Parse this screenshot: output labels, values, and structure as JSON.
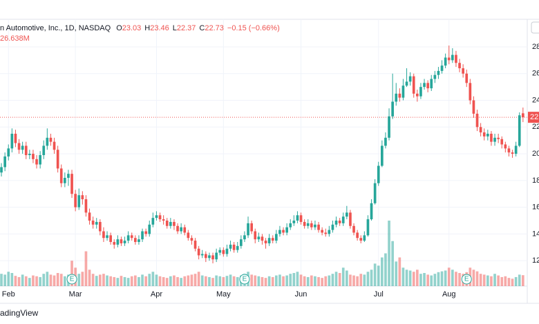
{
  "chart_data": {
    "type": "candlestick",
    "title": "n Automotive, Inc., 1D, NASDAQ",
    "ohlc_labels": [
      "O",
      "H",
      "L",
      "C"
    ],
    "change_label": "−0.15 (−0.66%)",
    "volume_label": "26.638M",
    "watermark": "adingView",
    "up_color": "#26a69a",
    "down_color": "#ef5350",
    "grid": true,
    "xlim": [
      -0.4,
      149.6
    ],
    "xticks": [
      {
        "value": 2,
        "label": "Feb"
      },
      {
        "value": 21,
        "label": "Mar"
      },
      {
        "value": 44,
        "label": "Apr"
      },
      {
        "value": 63,
        "label": "May"
      },
      {
        "value": 85,
        "label": "Jun"
      },
      {
        "value": 107,
        "label": "Jul"
      },
      {
        "value": 127,
        "label": "Aug"
      }
    ],
    "ylim": [
      10.1,
      28.67
    ],
    "yticks": [
      12,
      14,
      16,
      18,
      20,
      22,
      24,
      26,
      28
    ],
    "earnings": [
      {
        "index": 20,
        "label": "E"
      },
      {
        "index": 69,
        "label": "E"
      },
      {
        "index": 132,
        "label": "E"
      }
    ],
    "open": [
      18.6,
      19.0,
      19.8,
      20.4,
      21.5,
      20.8,
      20.3,
      20.6,
      19.9,
      20.0,
      19.6,
      19.2,
      19.9,
      20.6,
      21.2,
      20.9,
      20.3,
      18.9,
      17.8,
      18.2,
      18.5,
      17.0,
      16.0,
      16.9,
      16.6,
      15.6,
      15.0,
      14.7,
      14.9,
      14.2,
      13.7,
      13.9,
      13.4,
      13.2,
      13.6,
      13.3,
      13.5,
      13.9,
      13.7,
      13.4,
      13.6,
      14.2,
      14.0,
      14.7,
      15.2,
      15.4,
      15.1,
      15.0,
      14.6,
      14.9,
      14.6,
      14.2,
      14.5,
      14.1,
      13.7,
      13.5,
      12.9,
      12.4,
      12.5,
      12.2,
      12.4,
      12.1,
      12.6,
      12.8,
      12.5,
      12.9,
      13.2,
      12.8,
      13.1,
      13.6,
      13.9,
      14.8,
      14.2,
      13.6,
      13.8,
      13.5,
      13.3,
      13.7,
      13.5,
      14.0,
      14.3,
      14.1,
      14.5,
      14.8,
      15.0,
      15.4,
      14.9,
      14.6,
      14.8,
      14.5,
      14.7,
      14.3,
      14.1,
      14.0,
      14.3,
      14.7,
      15.0,
      14.8,
      15.3,
      15.6,
      14.6,
      14.1,
      13.7,
      13.5,
      13.9,
      15.1,
      16.3,
      17.8,
      19.1,
      20.6,
      21.2,
      22.8,
      23.9,
      24.5,
      24.2,
      25.1,
      25.4,
      25.8,
      24.5,
      24.3,
      25.0,
      25.3,
      24.9,
      25.6,
      25.9,
      26.2,
      26.6,
      27.2,
      27.0,
      27.4,
      26.8,
      26.4,
      26.0,
      25.3,
      24.0,
      23.0,
      22.0,
      21.6,
      21.3,
      21.5,
      20.9,
      21.2,
      21.1,
      20.7,
      20.4,
      20.1,
      20.0,
      20.6,
      23.03
    ],
    "high": [
      19.3,
      20.1,
      20.7,
      21.9,
      21.8,
      21.1,
      20.9,
      20.9,
      20.3,
      20.3,
      19.9,
      20.2,
      21.0,
      21.9,
      21.5,
      21.2,
      20.6,
      19.2,
      18.6,
      18.8,
      18.8,
      17.3,
      17.4,
      17.2,
      16.9,
      15.9,
      15.3,
      15.2,
      15.1,
      14.5,
      14.2,
      14.1,
      13.6,
      13.9,
      13.8,
      13.8,
      14.2,
      14.1,
      13.9,
      13.9,
      14.4,
      14.4,
      15.0,
      15.6,
      15.7,
      15.6,
      15.4,
      15.2,
      15.2,
      15.1,
      14.8,
      14.8,
      14.7,
      14.3,
      13.9,
      13.7,
      13.1,
      12.8,
      12.7,
      12.6,
      12.6,
      12.9,
      13.0,
      13.0,
      13.2,
      13.5,
      13.4,
      13.4,
      13.9,
      14.2,
      15.3,
      15.0,
      14.4,
      14.1,
      14.0,
      13.7,
      14.0,
      13.9,
      14.3,
      14.6,
      14.5,
      14.8,
      15.1,
      15.4,
      15.7,
      15.6,
      15.1,
      15.1,
      15.0,
      15.0,
      14.9,
      14.5,
      14.4,
      14.6,
      15.0,
      15.3,
      15.2,
      15.6,
      16.1,
      15.8,
      14.8,
      14.3,
      13.9,
      14.2,
      15.4,
      16.6,
      18.1,
      19.4,
      21.0,
      21.6,
      23.4,
      26.0,
      25.3,
      24.9,
      25.6,
      26.4,
      26.1,
      26.0,
      24.8,
      25.3,
      25.6,
      25.5,
      25.9,
      26.2,
      26.5,
      27.0,
      27.5,
      28.1,
      27.9,
      27.7,
      27.1,
      26.7,
      26.3,
      25.6,
      24.3,
      23.3,
      22.3,
      21.9,
      21.8,
      21.7,
      21.5,
      21.5,
      21.3,
      20.9,
      20.6,
      20.3,
      20.9,
      23.1,
      23.46
    ],
    "low": [
      18.3,
      18.7,
      19.5,
      20.1,
      20.5,
      20.0,
      20.0,
      19.6,
      19.6,
      19.3,
      18.9,
      18.9,
      19.6,
      20.3,
      20.6,
      20.0,
      18.6,
      17.5,
      17.5,
      17.6,
      16.7,
      15.7,
      15.8,
      16.2,
      15.3,
      14.7,
      14.4,
      14.4,
      13.9,
      13.4,
      13.5,
      13.2,
      12.9,
      13.0,
      13.1,
      13.1,
      13.3,
      13.5,
      13.2,
      13.2,
      13.4,
      13.8,
      13.8,
      14.5,
      15.0,
      14.9,
      14.7,
      14.4,
      14.4,
      14.3,
      14.0,
      14.0,
      13.9,
      13.5,
      13.2,
      12.7,
      12.1,
      12.2,
      11.9,
      12.0,
      11.8,
      11.9,
      12.4,
      12.3,
      12.3,
      12.7,
      12.6,
      12.6,
      12.9,
      13.4,
      13.7,
      14.0,
      13.3,
      13.4,
      13.2,
      12.9,
      13.1,
      13.3,
      13.3,
      13.8,
      13.9,
      13.9,
      14.3,
      14.6,
      14.8,
      14.7,
      14.4,
      14.4,
      14.3,
      14.3,
      14.1,
      13.9,
      13.8,
      13.8,
      14.1,
      14.5,
      14.6,
      14.6,
      15.1,
      14.4,
      13.9,
      13.5,
      13.3,
      13.4,
      13.8,
      15.0,
      16.2,
      17.6,
      19.0,
      20.4,
      21.0,
      22.6,
      23.6,
      23.9,
      24.0,
      25.0,
      25.1,
      24.2,
      23.9,
      24.1,
      24.8,
      24.6,
      24.7,
      25.3,
      25.6,
      26.0,
      26.4,
      26.7,
      26.8,
      26.5,
      26.1,
      25.7,
      25.0,
      23.7,
      22.7,
      21.7,
      21.3,
      21.0,
      21.0,
      20.6,
      20.6,
      20.8,
      20.4,
      20.1,
      19.8,
      19.7,
      19.8,
      20.5,
      22.37
    ],
    "close": [
      19.0,
      19.8,
      20.4,
      21.5,
      20.8,
      20.3,
      20.6,
      19.9,
      20.0,
      19.6,
      19.2,
      19.9,
      20.6,
      21.2,
      20.9,
      20.3,
      18.9,
      17.8,
      18.2,
      18.5,
      17.0,
      16.0,
      16.9,
      16.6,
      15.6,
      15.0,
      14.7,
      14.9,
      14.2,
      13.7,
      13.9,
      13.4,
      13.2,
      13.6,
      13.3,
      13.5,
      13.9,
      13.7,
      13.4,
      13.6,
      14.2,
      14.0,
      14.7,
      15.2,
      15.4,
      15.1,
      15.0,
      14.6,
      14.9,
      14.6,
      14.2,
      14.5,
      14.1,
      13.7,
      13.5,
      12.9,
      12.4,
      12.5,
      12.2,
      12.4,
      12.1,
      12.6,
      12.8,
      12.5,
      12.9,
      13.2,
      12.8,
      13.1,
      13.6,
      13.9,
      14.8,
      14.2,
      13.6,
      13.8,
      13.5,
      13.3,
      13.7,
      13.5,
      14.0,
      14.3,
      14.1,
      14.5,
      14.8,
      15.0,
      15.4,
      14.9,
      14.6,
      14.8,
      14.5,
      14.7,
      14.3,
      14.1,
      14.0,
      14.3,
      14.7,
      15.0,
      14.8,
      15.3,
      15.6,
      14.6,
      14.1,
      13.7,
      13.5,
      13.9,
      15.1,
      16.3,
      17.8,
      19.1,
      20.6,
      21.2,
      22.8,
      23.9,
      24.5,
      24.2,
      25.1,
      25.4,
      25.8,
      24.5,
      24.3,
      25.0,
      25.3,
      24.9,
      25.6,
      25.9,
      26.2,
      26.6,
      27.2,
      27.0,
      27.4,
      26.8,
      26.4,
      26.0,
      25.3,
      24.0,
      23.0,
      22.0,
      21.6,
      21.3,
      21.5,
      20.9,
      21.2,
      21.1,
      20.7,
      20.4,
      20.1,
      20.0,
      20.6,
      22.88,
      22.73
    ],
    "volume": [
      30,
      28,
      35,
      32,
      25,
      22,
      28,
      24,
      20,
      26,
      24,
      22,
      30,
      35,
      28,
      26,
      32,
      30,
      24,
      28,
      62,
      45,
      30,
      35,
      85,
      40,
      30,
      25,
      28,
      30,
      26,
      24,
      22,
      20,
      25,
      22,
      20,
      24,
      26,
      22,
      28,
      24,
      30,
      35,
      28,
      24,
      22,
      20,
      24,
      26,
      22,
      20,
      24,
      26,
      28,
      30,
      35,
      26,
      24,
      22,
      20,
      26,
      24,
      22,
      25,
      28,
      24,
      22,
      26,
      30,
      35,
      28,
      26,
      24,
      22,
      20,
      24,
      22,
      26,
      28,
      24,
      26,
      30,
      32,
      35,
      28,
      24,
      22,
      26,
      24,
      22,
      20,
      24,
      26,
      30,
      35,
      32,
      45,
      38,
      28,
      26,
      24,
      30,
      28,
      35,
      40,
      55,
      50,
      70,
      80,
      160,
      110,
      60,
      70,
      45,
      40,
      38,
      35,
      40,
      30,
      32,
      28,
      26,
      30,
      34,
      36,
      38,
      45,
      40,
      35,
      32,
      30,
      34,
      45,
      40,
      36,
      30,
      28,
      26,
      24,
      30,
      26,
      22,
      24,
      20,
      18,
      22,
      28,
      26.638
    ]
  }
}
